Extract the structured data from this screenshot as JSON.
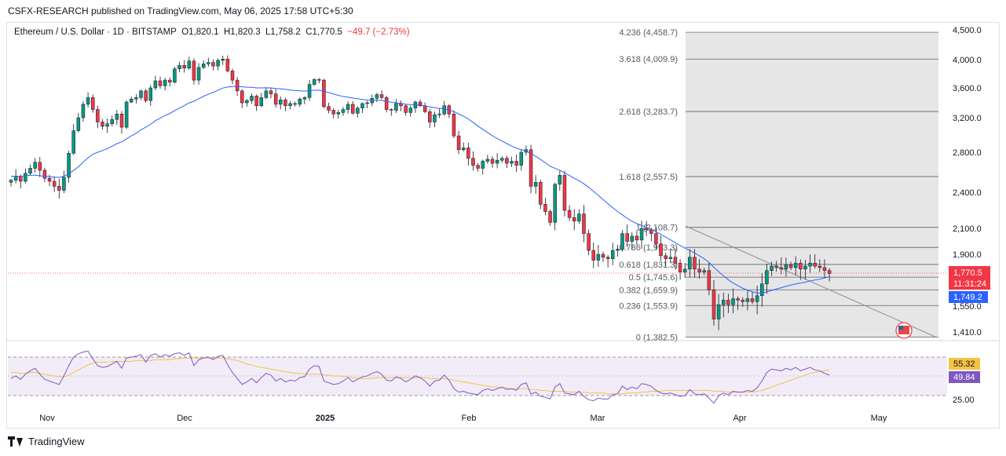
{
  "header": {
    "publisher": "CSFX-RESEARCH published on TradingView.com, May 06, 2025 17:58 UTC+5:30"
  },
  "legend": {
    "symbol": "Ethereum / U.S. Dollar · 1D · BITSTAMP",
    "open": "O1,820.1",
    "high": "H1,820.3",
    "low": "L1,758.2",
    "close": "C1,770.5",
    "change": "−49.7 (−2.73%)"
  },
  "footer": {
    "brand": "TradingView"
  },
  "chart_data": {
    "type": "candlestick",
    "price_axis": {
      "ticks": [
        "4,500.0",
        "4,000.0",
        "3,600.0",
        "3,200.0",
        "2,800.0",
        "2,400.0",
        "2,100.0",
        "1,900.0",
        "1,550.0",
        "1,410.0"
      ]
    },
    "time_axis": {
      "ticks": [
        "Nov",
        "Dec",
        "2025",
        "Feb",
        "Mar",
        "Apr",
        "May"
      ]
    },
    "price_labels": {
      "last": "1,770.5",
      "countdown": "11:31:24",
      "ma": "1,749.2"
    },
    "fibonacci": [
      {
        "label": "4.236 (4,458.7)",
        "price": 4458.7
      },
      {
        "label": "3.618 (4,009.9)",
        "price": 4009.9
      },
      {
        "label": "2.618 (3,283.7)",
        "price": 3283.7
      },
      {
        "label": "1.618 (2,557.5)",
        "price": 2557.5
      },
      {
        "label": "1 (2,108.7)",
        "price": 2108.7
      },
      {
        "label": "0.786 (1,953.3)",
        "price": 1953.3
      },
      {
        "label": "0.618 (1,831.3)",
        "price": 1831.3
      },
      {
        "label": "0.5 (1,745.6)",
        "price": 1745.6
      },
      {
        "label": "0.382 (1,659.9)",
        "price": 1659.9
      },
      {
        "label": "0.236 (1,553.9)",
        "price": 1553.9
      },
      {
        "label": "0 (1,382.5)",
        "price": 1382.5
      }
    ],
    "closes": [
      2520,
      2560,
      2510,
      2590,
      2640,
      2700,
      2620,
      2540,
      2510,
      2460,
      2420,
      2550,
      2790,
      3050,
      3200,
      3380,
      3470,
      3310,
      3150,
      3100,
      3130,
      3180,
      3250,
      3090,
      3410,
      3450,
      3470,
      3560,
      3430,
      3600,
      3700,
      3630,
      3710,
      3680,
      3870,
      3920,
      3880,
      3980,
      3710,
      3890,
      3940,
      3960,
      3910,
      3990,
      4010,
      3840,
      3710,
      3560,
      3400,
      3430,
      3490,
      3360,
      3470,
      3560,
      3520,
      3380,
      3440,
      3360,
      3390,
      3380,
      3450,
      3470,
      3650,
      3720,
      3710,
      3350,
      3300,
      3250,
      3270,
      3310,
      3380,
      3260,
      3330,
      3390,
      3400,
      3460,
      3510,
      3470,
      3310,
      3300,
      3390,
      3360,
      3270,
      3330,
      3410,
      3360,
      3280,
      3150,
      3240,
      3250,
      3360,
      3250,
      2990,
      2830,
      2850,
      2740,
      2670,
      2640,
      2710,
      2730,
      2690,
      2720,
      2740,
      2690,
      2710,
      2670,
      2800,
      2830,
      2460,
      2500,
      2300,
      2240,
      2150,
      2480,
      2570,
      2250,
      2190,
      2160,
      2220,
      2060,
      1930,
      1860,
      1900,
      1880,
      1870,
      1930,
      1940,
      2060,
      2000,
      2040,
      2010,
      2100,
      2090,
      2060,
      1980,
      1890,
      1870,
      1880,
      1840,
      1780,
      1800,
      1880,
      1800,
      1780,
      1790,
      1660,
      1480,
      1560,
      1590,
      1560,
      1600,
      1590,
      1580,
      1600,
      1580,
      1620,
      1700,
      1790,
      1820,
      1810,
      1800,
      1830,
      1810,
      1840,
      1800,
      1820,
      1840,
      1820,
      1810,
      1790,
      1770
    ],
    "ma_line": [
      2560,
      2561,
      2560,
      2565,
      2570,
      2572,
      2566,
      2560,
      2556,
      2552,
      2549,
      2560,
      2585,
      2618,
      2655,
      2700,
      2745,
      2780,
      2800,
      2820,
      2840,
      2870,
      2900,
      2920,
      2955,
      2990,
      3020,
      3060,
      3090,
      3125,
      3165,
      3195,
      3230,
      3258,
      3295,
      3330,
      3362,
      3400,
      3420,
      3455,
      3488,
      3515,
      3540,
      3568,
      3598,
      3612,
      3620,
      3622,
      3615,
      3610,
      3608,
      3600,
      3600,
      3602,
      3600,
      3592,
      3588,
      3580,
      3572,
      3565,
      3560,
      3557,
      3562,
      3568,
      3570,
      3555,
      3538,
      3518,
      3500,
      3485,
      3475,
      3465,
      3455,
      3445,
      3440,
      3438,
      3436,
      3432,
      3420,
      3408,
      3400,
      3393,
      3382,
      3375,
      3372,
      3368,
      3360,
      3345,
      3335,
      3325,
      3318,
      3305,
      3282,
      3250,
      3220,
      3185,
      3145,
      3103,
      3065,
      3028,
      2992,
      2960,
      2930,
      2900,
      2872,
      2848,
      2830,
      2815,
      2785,
      2760,
      2728,
      2695,
      2660,
      2640,
      2620,
      2595,
      2568,
      2540,
      2515,
      2485,
      2450,
      2410,
      2375,
      2340,
      2305,
      2272,
      2240,
      2212,
      2184,
      2160,
      2140,
      2124,
      2108,
      2093,
      2074,
      2054,
      2032,
      2012,
      1990,
      1968,
      1948,
      1930,
      1910,
      1890,
      1870,
      1845,
      1812,
      1782,
      1755,
      1728,
      1706,
      1688,
      1670,
      1658,
      1646,
      1638,
      1638,
      1646,
      1656,
      1666,
      1674,
      1684,
      1692,
      1700,
      1706,
      1712,
      1720,
      1726,
      1732,
      1740,
      1749
    ],
    "rsi": {
      "levels": [
        "25.00"
      ],
      "rsi_label": "49.84",
      "ma_label": "55.32",
      "values": [
        45,
        48,
        44,
        50,
        54,
        57,
        50,
        44,
        42,
        40,
        38,
        48,
        60,
        70,
        74,
        76,
        77,
        68,
        60,
        58,
        59,
        62,
        65,
        57,
        69,
        70,
        71,
        73,
        64,
        72,
        74,
        70,
        73,
        71,
        74,
        75,
        72,
        75,
        60,
        67,
        69,
        70,
        67,
        71,
        72,
        61,
        52,
        45,
        38,
        41,
        45,
        40,
        46,
        51,
        49,
        42,
        45,
        41,
        43,
        42,
        46,
        47,
        56,
        60,
        59,
        42,
        40,
        38,
        39,
        42,
        46,
        41,
        44,
        47,
        48,
        51,
        53,
        50,
        43,
        42,
        47,
        45,
        41,
        44,
        48,
        46,
        42,
        36,
        42,
        43,
        49,
        43,
        33,
        29,
        30,
        28,
        27,
        26,
        31,
        33,
        31,
        33,
        35,
        32,
        33,
        31,
        38,
        40,
        27,
        29,
        24,
        23,
        21,
        35,
        39,
        28,
        27,
        26,
        30,
        24,
        20,
        19,
        22,
        21,
        21,
        26,
        27,
        36,
        32,
        35,
        33,
        39,
        38,
        36,
        31,
        28,
        27,
        28,
        26,
        24,
        25,
        32,
        27,
        26,
        27,
        22,
        16,
        25,
        28,
        26,
        30,
        29,
        29,
        31,
        30,
        34,
        42,
        52,
        56,
        55,
        54,
        57,
        55,
        58,
        54,
        56,
        58,
        55,
        54,
        51,
        49
      ],
      "ma_values": [
        52,
        52,
        51,
        51,
        52,
        52,
        51,
        50,
        49,
        48,
        47,
        47,
        49,
        52,
        55,
        58,
        61,
        63,
        64,
        64,
        64,
        65,
        65,
        65,
        65,
        65,
        66,
        66,
        66,
        66,
        67,
        67,
        67,
        67,
        68,
        68,
        69,
        69,
        69,
        69,
        69,
        69,
        69,
        69,
        69,
        68,
        67,
        66,
        64,
        62,
        61,
        59,
        58,
        57,
        56,
        55,
        54,
        53,
        52,
        51,
        51,
        50,
        50,
        50,
        50,
        49,
        49,
        48,
        48,
        47,
        47,
        46,
        45,
        45,
        45,
        45,
        46,
        46,
        46,
        46,
        46,
        46,
        46,
        46,
        46,
        46,
        46,
        45,
        45,
        45,
        45,
        44,
        43,
        42,
        41,
        40,
        39,
        38,
        37,
        36,
        35,
        35,
        34,
        34,
        33,
        33,
        33,
        33,
        32,
        32,
        31,
        31,
        30,
        30,
        30,
        30,
        29,
        29,
        29,
        29,
        28,
        28,
        28,
        28,
        27,
        27,
        27,
        27,
        28,
        28,
        28,
        29,
        29,
        30,
        30,
        30,
        31,
        31,
        31,
        31,
        31,
        31,
        31,
        31,
        31,
        31,
        30,
        30,
        30,
        29,
        29,
        29,
        29,
        29,
        29,
        30,
        31,
        33,
        35,
        37,
        39,
        41,
        43,
        45,
        47,
        49,
        51,
        52,
        53,
        54,
        55
      ]
    }
  }
}
